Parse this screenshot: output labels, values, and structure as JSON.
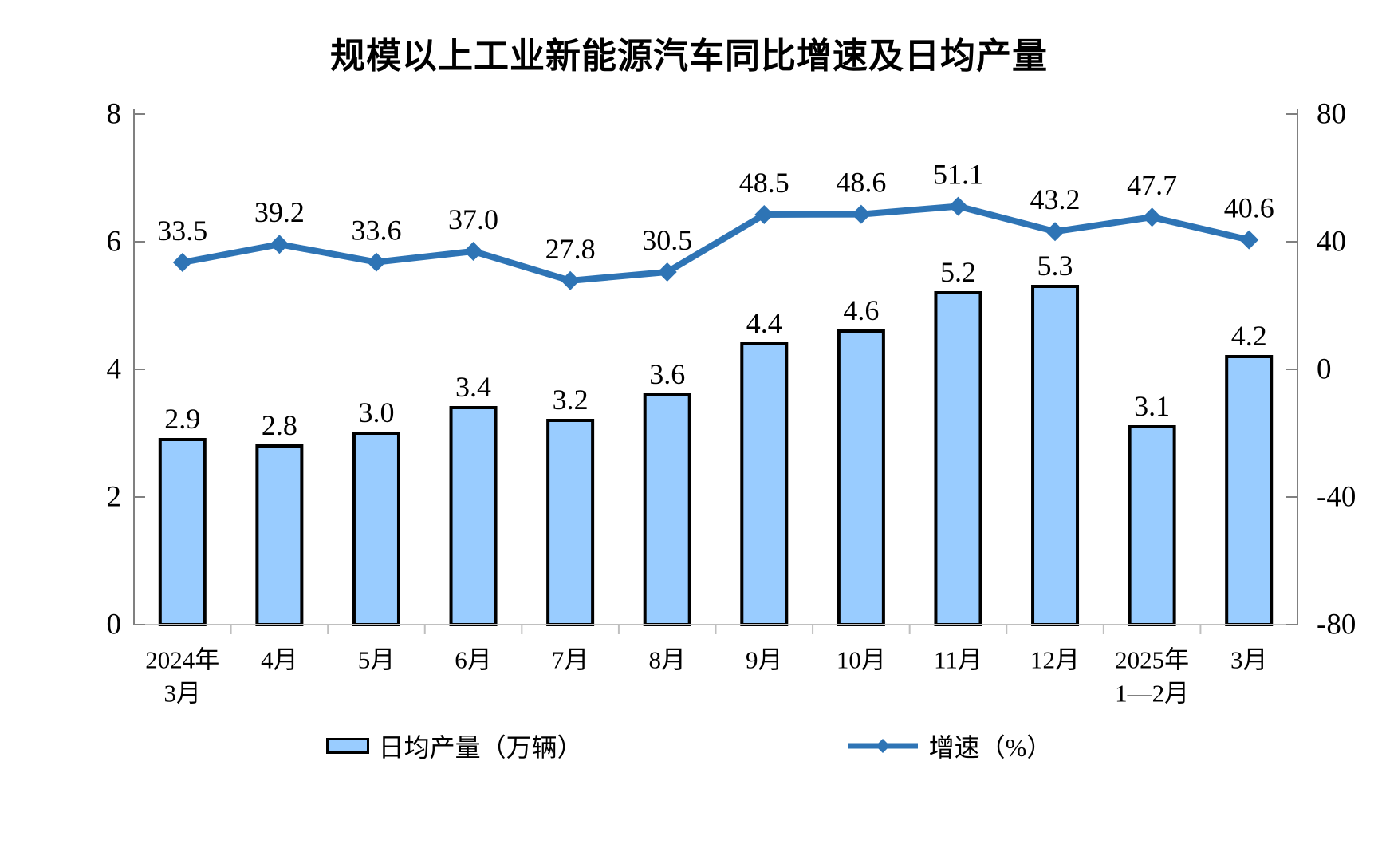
{
  "title": "规模以上工业新能源汽车同比增速及日均产量",
  "legend": {
    "bar_label": "日均产量（万辆）",
    "line_label": "增速（%）"
  },
  "colors": {
    "bar_fill": "#99CCFF",
    "bar_border": "#000000",
    "line": "#2E74B5",
    "axis": "#808080",
    "axis_bottom": "#BFBFBF",
    "text": "#000000"
  },
  "chart_data": {
    "type": "bar+line combo",
    "categories": [
      [
        "2024年",
        "3月"
      ],
      [
        "4月"
      ],
      [
        "5月"
      ],
      [
        "6月"
      ],
      [
        "7月"
      ],
      [
        "8月"
      ],
      [
        "9月"
      ],
      [
        "10月"
      ],
      [
        "11月"
      ],
      [
        "12月"
      ],
      [
        "2025年",
        "1—2月"
      ],
      [
        "3月"
      ]
    ],
    "series": [
      {
        "name": "日均产量（万辆）",
        "type": "bar",
        "axis": "left",
        "values": [
          2.9,
          2.8,
          3.0,
          3.4,
          3.2,
          3.6,
          4.4,
          4.6,
          5.2,
          5.3,
          3.1,
          4.2
        ],
        "labels": [
          "2.9",
          "2.8",
          "3.0",
          "3.4",
          "3.2",
          "3.6",
          "4.4",
          "4.6",
          "5.2",
          "5.3",
          "3.1",
          "4.2"
        ]
      },
      {
        "name": "增速（%）",
        "type": "line",
        "axis": "right",
        "values": [
          33.5,
          39.2,
          33.6,
          37.0,
          27.8,
          30.5,
          48.5,
          48.6,
          51.1,
          43.2,
          47.7,
          40.6
        ],
        "labels": [
          "33.5",
          "39.2",
          "33.6",
          "37.0",
          "27.8",
          "30.5",
          "48.5",
          "48.6",
          "51.1",
          "43.2",
          "47.7",
          "40.6"
        ]
      }
    ],
    "left_axis": {
      "min": 0,
      "max": 8,
      "tick_labels": [
        "8",
        "6",
        "4",
        "2",
        "0"
      ],
      "tick_values": [
        8,
        6,
        4,
        2,
        0
      ]
    },
    "right_axis": {
      "min": -80,
      "max": 80,
      "tick_labels": [
        "80",
        "40",
        "0",
        "-40",
        "-80"
      ],
      "tick_values": [
        80,
        40,
        0,
        -40,
        -80
      ]
    },
    "grid": false,
    "legend_position": "bottom"
  }
}
